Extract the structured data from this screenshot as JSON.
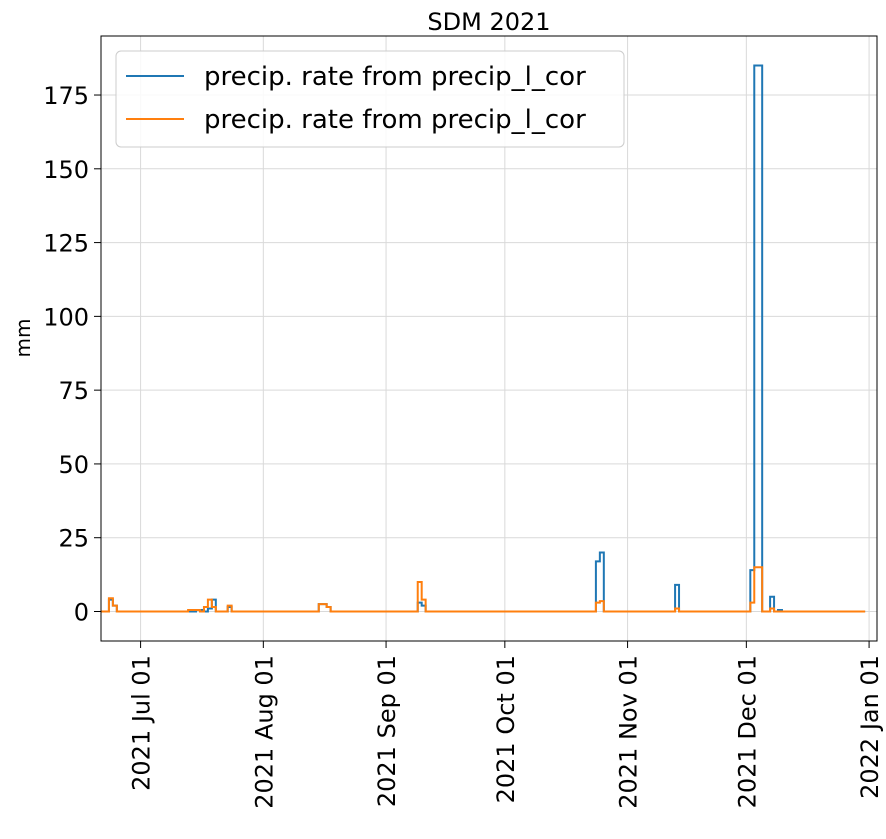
{
  "chart_data": {
    "type": "line",
    "title": "SDM 2021",
    "xlabel": "",
    "ylabel": "mm",
    "ylim": [
      -10,
      195
    ],
    "xlim": [
      "2021-06-21",
      "2022-01-03"
    ],
    "grid": true,
    "legend_position": "top-left",
    "x_ticks": [
      "2021-07-01",
      "2021-08-01",
      "2021-09-01",
      "2021-10-01",
      "2021-11-01",
      "2021-12-01",
      "2022-01-01"
    ],
    "x_tick_labels": [
      "2021 Jul 01",
      "2021 Aug 01",
      "2021 Sep 01",
      "2021 Oct 01",
      "2021 Nov 01",
      "2021 Dec 01",
      "2022 Jan 01"
    ],
    "y_ticks": [
      0,
      25,
      50,
      75,
      100,
      125,
      150,
      175
    ],
    "y_tick_labels": [
      "0",
      "25",
      "50",
      "75",
      "100",
      "125",
      "150",
      "175"
    ],
    "series": [
      {
        "name": "precip. rate from precip_l_cor",
        "color": "#1f77b4",
        "x": [
          "2021-06-21",
          "2021-06-23",
          "2021-06-24",
          "2021-06-25",
          "2021-06-26",
          "2021-07-13",
          "2021-07-15",
          "2021-07-16",
          "2021-07-17",
          "2021-07-18",
          "2021-07-19",
          "2021-07-20",
          "2021-07-22",
          "2021-07-23",
          "2021-07-24",
          "2021-08-15",
          "2021-08-17",
          "2021-08-18",
          "2021-09-09",
          "2021-09-10",
          "2021-09-11",
          "2021-10-24",
          "2021-10-25",
          "2021-10-26",
          "2021-11-08",
          "2021-11-13",
          "2021-11-14",
          "2021-11-15",
          "2021-12-02",
          "2021-12-03",
          "2021-12-04",
          "2021-12-05",
          "2021-12-07",
          "2021-12-08",
          "2021-12-09",
          "2021-12-10",
          "2021-12-14",
          "2021-12-31"
        ],
        "y": [
          0,
          4,
          2,
          0,
          0,
          0,
          0.5,
          0.5,
          0,
          1,
          4,
          0,
          0,
          1.5,
          0,
          2.5,
          1.5,
          0,
          3,
          2,
          0,
          17,
          20,
          0,
          0,
          9,
          0,
          0,
          14,
          185,
          185,
          0,
          5,
          0,
          0.5,
          0,
          0,
          0
        ]
      },
      {
        "name": "precip. rate from precip_l_cor",
        "color": "#ff7f0e",
        "x": [
          "2021-06-21",
          "2021-06-23",
          "2021-06-24",
          "2021-06-25",
          "2021-06-26",
          "2021-07-13",
          "2021-07-16",
          "2021-07-17",
          "2021-07-18",
          "2021-07-19",
          "2021-07-20",
          "2021-07-22",
          "2021-07-23",
          "2021-07-24",
          "2021-08-15",
          "2021-08-17",
          "2021-08-18",
          "2021-09-09",
          "2021-09-10",
          "2021-09-11",
          "2021-10-24",
          "2021-10-25",
          "2021-10-26",
          "2021-11-08",
          "2021-11-13",
          "2021-11-14",
          "2021-11-15",
          "2021-12-02",
          "2021-12-03",
          "2021-12-04",
          "2021-12-05",
          "2021-12-07",
          "2021-12-08",
          "2021-12-09",
          "2021-12-10",
          "2021-12-14",
          "2021-12-31"
        ],
        "y": [
          0,
          4.5,
          2,
          0,
          0,
          0.5,
          0,
          1.5,
          4,
          1.5,
          0,
          0,
          2,
          0,
          2.5,
          1.5,
          0,
          10,
          4,
          0,
          3,
          3.5,
          0,
          0,
          1,
          0,
          0,
          3,
          15,
          15,
          0,
          1,
          0,
          0,
          0,
          0,
          0
        ]
      }
    ]
  }
}
